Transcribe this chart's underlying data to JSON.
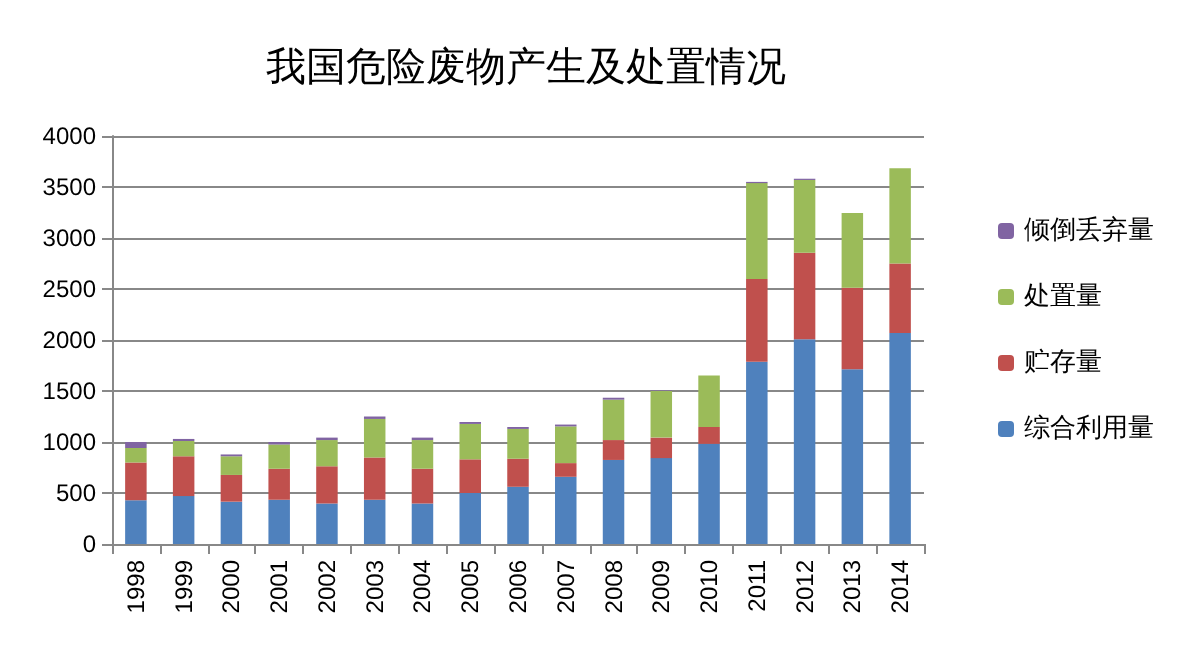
{
  "chart_data": {
    "type": "bar",
    "title": "我国危险废物产生及处置情况",
    "stacked": true,
    "categories": [
      "1998",
      "1999",
      "2000",
      "2001",
      "2002",
      "2003",
      "2004",
      "2005",
      "2006",
      "2007",
      "2008",
      "2009",
      "2010",
      "2011",
      "2012",
      "2013",
      "2014"
    ],
    "series": [
      {
        "name": "综合利用量",
        "color": "#4f81bd",
        "values": [
          430,
          470,
          415,
          433,
          397,
          433,
          397,
          500,
          561,
          659,
          824,
          842,
          982,
          1787,
          2007,
          1714,
          2068
        ]
      },
      {
        "name": "贮存量",
        "color": "#c0504d",
        "values": [
          370,
          390,
          262,
          305,
          365,
          415,
          341,
          330,
          275,
          134,
          195,
          201,
          165,
          812,
          848,
          799,
          683
        ]
      },
      {
        "name": "处置量",
        "color": "#9bbb59",
        "values": [
          140,
          150,
          183,
          238,
          257,
          378,
          281,
          347,
          292,
          360,
          396,
          458,
          506,
          939,
          714,
          732,
          933
        ]
      },
      {
        "name": "倾倒丢弃量",
        "color": "#8064a2",
        "values": [
          60,
          20,
          18,
          24,
          24,
          24,
          24,
          19,
          19,
          18,
          19,
          5,
          0,
          12,
          12,
          0,
          0
        ]
      }
    ],
    "ylim": [
      0,
      4000
    ],
    "yticks": [
      0,
      500,
      1000,
      1500,
      2000,
      2500,
      3000,
      3500,
      4000
    ],
    "grid": "y",
    "legend": "right"
  }
}
